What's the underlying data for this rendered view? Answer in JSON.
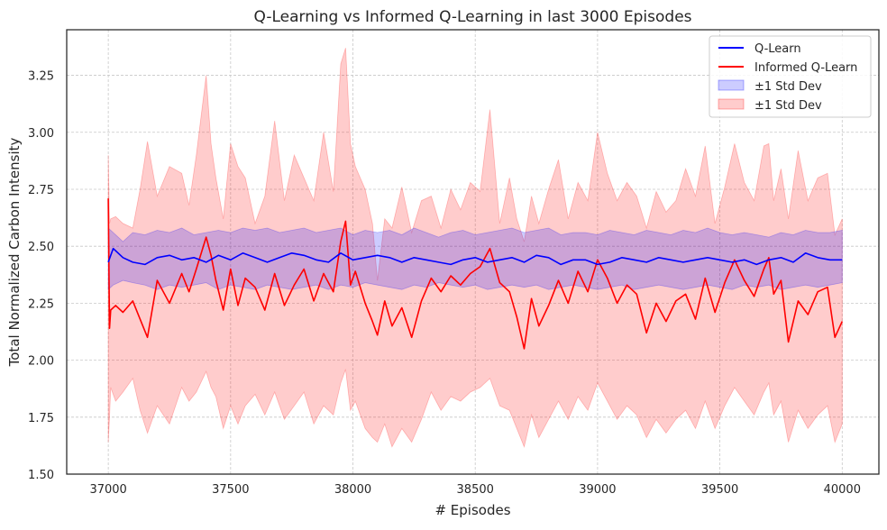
{
  "chart_data": {
    "type": "line",
    "title": "Q-Learning vs Informed Q-Learning in last 3000 Episodes",
    "xlabel": "# Episodes",
    "ylabel": "Total Normalized Carbon Intensity",
    "xlim": [
      36830,
      40150
    ],
    "ylim": [
      1.5,
      3.45
    ],
    "xticks": [
      37000,
      37500,
      38000,
      38500,
      39000,
      39500,
      40000
    ],
    "yticks": [
      1.5,
      1.75,
      2.0,
      2.25,
      2.5,
      2.75,
      3.0,
      3.25
    ],
    "ytick_labels": [
      "1.50",
      "1.75",
      "2.00",
      "2.25",
      "2.50",
      "2.75",
      "3.00",
      "3.25"
    ],
    "grid": true,
    "legend_position": "top-right",
    "series": [
      {
        "name": "Q-Learn",
        "color": "#0000ff",
        "x": [
          37000,
          37020,
          37060,
          37100,
          37150,
          37200,
          37250,
          37300,
          37350,
          37400,
          37450,
          37500,
          37550,
          37600,
          37650,
          37700,
          37750,
          37800,
          37850,
          37900,
          37950,
          38000,
          38050,
          38100,
          38150,
          38200,
          38250,
          38300,
          38350,
          38400,
          38450,
          38500,
          38550,
          38600,
          38650,
          38700,
          38750,
          38800,
          38850,
          38900,
          38950,
          39000,
          39050,
          39100,
          39150,
          39200,
          39250,
          39300,
          39350,
          39400,
          39450,
          39500,
          39550,
          39600,
          39650,
          39700,
          39750,
          39800,
          39850,
          39900,
          39950,
          40000
        ],
        "y": [
          2.43,
          2.49,
          2.45,
          2.43,
          2.42,
          2.45,
          2.46,
          2.44,
          2.45,
          2.43,
          2.46,
          2.44,
          2.47,
          2.45,
          2.43,
          2.45,
          2.47,
          2.46,
          2.44,
          2.43,
          2.47,
          2.44,
          2.45,
          2.46,
          2.45,
          2.43,
          2.45,
          2.44,
          2.43,
          2.42,
          2.44,
          2.45,
          2.43,
          2.44,
          2.45,
          2.43,
          2.46,
          2.45,
          2.42,
          2.44,
          2.44,
          2.42,
          2.43,
          2.45,
          2.44,
          2.43,
          2.45,
          2.44,
          2.43,
          2.44,
          2.45,
          2.44,
          2.43,
          2.44,
          2.42,
          2.44,
          2.45,
          2.43,
          2.47,
          2.45,
          2.44,
          2.44
        ],
        "band": {
          "name": "±1 Std Dev",
          "color": "#0000ff",
          "opacity": 0.2,
          "upper": [
            2.58,
            2.56,
            2.52,
            2.56,
            2.55,
            2.57,
            2.56,
            2.58,
            2.55,
            2.56,
            2.57,
            2.56,
            2.58,
            2.57,
            2.58,
            2.56,
            2.57,
            2.58,
            2.56,
            2.57,
            2.58,
            2.55,
            2.57,
            2.56,
            2.57,
            2.55,
            2.58,
            2.56,
            2.54,
            2.56,
            2.57,
            2.55,
            2.56,
            2.57,
            2.58,
            2.56,
            2.57,
            2.58,
            2.55,
            2.56,
            2.56,
            2.55,
            2.57,
            2.56,
            2.55,
            2.57,
            2.56,
            2.55,
            2.57,
            2.56,
            2.58,
            2.56,
            2.55,
            2.56,
            2.55,
            2.54,
            2.56,
            2.55,
            2.57,
            2.56,
            2.56,
            2.57
          ],
          "lower": [
            2.31,
            2.33,
            2.35,
            2.34,
            2.33,
            2.31,
            2.33,
            2.32,
            2.33,
            2.34,
            2.31,
            2.33,
            2.32,
            2.31,
            2.33,
            2.32,
            2.31,
            2.32,
            2.33,
            2.31,
            2.33,
            2.32,
            2.34,
            2.33,
            2.32,
            2.31,
            2.33,
            2.32,
            2.34,
            2.33,
            2.32,
            2.33,
            2.31,
            2.32,
            2.33,
            2.32,
            2.33,
            2.31,
            2.32,
            2.33,
            2.32,
            2.31,
            2.32,
            2.33,
            2.31,
            2.32,
            2.33,
            2.32,
            2.31,
            2.32,
            2.33,
            2.32,
            2.31,
            2.33,
            2.32,
            2.33,
            2.31,
            2.32,
            2.33,
            2.32,
            2.33,
            2.34
          ]
        }
      },
      {
        "name": "Informed Q-Learn",
        "color": "#ff0000",
        "x": [
          37000,
          37005,
          37010,
          37030,
          37060,
          37100,
          37130,
          37160,
          37200,
          37250,
          37300,
          37330,
          37360,
          37400,
          37420,
          37440,
          37470,
          37500,
          37530,
          37560,
          37600,
          37640,
          37680,
          37720,
          37760,
          37800,
          37840,
          37880,
          37920,
          37950,
          37970,
          37990,
          38010,
          38050,
          38080,
          38100,
          38130,
          38160,
          38200,
          38240,
          38280,
          38320,
          38360,
          38400,
          38440,
          38480,
          38520,
          38560,
          38600,
          38640,
          38670,
          38700,
          38730,
          38760,
          38800,
          38840,
          38880,
          38920,
          38960,
          39000,
          39040,
          39080,
          39120,
          39160,
          39200,
          39240,
          39280,
          39320,
          39360,
          39400,
          39440,
          39480,
          39520,
          39560,
          39600,
          39640,
          39680,
          39700,
          39720,
          39750,
          39780,
          39820,
          39860,
          39900,
          39940,
          39970,
          40000
        ],
        "y": [
          2.71,
          2.14,
          2.22,
          2.24,
          2.21,
          2.26,
          2.18,
          2.1,
          2.35,
          2.25,
          2.38,
          2.3,
          2.4,
          2.54,
          2.46,
          2.35,
          2.22,
          2.4,
          2.24,
          2.36,
          2.32,
          2.22,
          2.38,
          2.24,
          2.33,
          2.4,
          2.26,
          2.38,
          2.3,
          2.52,
          2.61,
          2.33,
          2.39,
          2.25,
          2.17,
          2.11,
          2.26,
          2.15,
          2.23,
          2.1,
          2.26,
          2.36,
          2.3,
          2.37,
          2.33,
          2.38,
          2.41,
          2.49,
          2.34,
          2.3,
          2.19,
          2.05,
          2.27,
          2.15,
          2.24,
          2.35,
          2.25,
          2.39,
          2.3,
          2.44,
          2.36,
          2.25,
          2.33,
          2.29,
          2.12,
          2.25,
          2.17,
          2.26,
          2.29,
          2.18,
          2.36,
          2.21,
          2.34,
          2.44,
          2.35,
          2.28,
          2.4,
          2.45,
          2.29,
          2.35,
          2.08,
          2.26,
          2.2,
          2.3,
          2.32,
          2.1,
          2.17
        ],
        "band": {
          "name": "±1 Std Dev",
          "color": "#ff0000",
          "opacity": 0.2,
          "upper": [
            2.9,
            2.6,
            2.62,
            2.63,
            2.6,
            2.58,
            2.75,
            2.96,
            2.72,
            2.85,
            2.82,
            2.68,
            2.9,
            3.25,
            2.95,
            2.8,
            2.62,
            2.95,
            2.85,
            2.8,
            2.6,
            2.72,
            3.05,
            2.7,
            2.9,
            2.8,
            2.7,
            3.0,
            2.74,
            3.3,
            3.37,
            2.95,
            2.85,
            2.75,
            2.6,
            2.35,
            2.62,
            2.58,
            2.76,
            2.56,
            2.7,
            2.72,
            2.58,
            2.75,
            2.66,
            2.78,
            2.74,
            3.1,
            2.6,
            2.8,
            2.62,
            2.52,
            2.72,
            2.6,
            2.75,
            2.88,
            2.62,
            2.78,
            2.7,
            3.0,
            2.82,
            2.7,
            2.78,
            2.72,
            2.58,
            2.74,
            2.65,
            2.7,
            2.84,
            2.72,
            2.94,
            2.6,
            2.76,
            2.95,
            2.78,
            2.7,
            2.94,
            2.95,
            2.7,
            2.84,
            2.62,
            2.92,
            2.7,
            2.8,
            2.82,
            2.55,
            2.62
          ],
          "lower": [
            1.64,
            1.75,
            1.88,
            1.82,
            1.86,
            1.92,
            1.78,
            1.68,
            1.8,
            1.72,
            1.88,
            1.82,
            1.86,
            1.95,
            1.88,
            1.84,
            1.7,
            1.8,
            1.72,
            1.8,
            1.85,
            1.76,
            1.86,
            1.74,
            1.8,
            1.86,
            1.72,
            1.8,
            1.76,
            1.9,
            1.96,
            1.78,
            1.82,
            1.7,
            1.66,
            1.64,
            1.72,
            1.62,
            1.7,
            1.64,
            1.74,
            1.86,
            1.78,
            1.84,
            1.82,
            1.86,
            1.88,
            1.92,
            1.8,
            1.78,
            1.7,
            1.62,
            1.76,
            1.66,
            1.74,
            1.82,
            1.74,
            1.84,
            1.78,
            1.9,
            1.82,
            1.74,
            1.8,
            1.76,
            1.66,
            1.74,
            1.68,
            1.74,
            1.78,
            1.7,
            1.82,
            1.7,
            1.8,
            1.88,
            1.82,
            1.76,
            1.86,
            1.9,
            1.76,
            1.82,
            1.64,
            1.78,
            1.7,
            1.76,
            1.8,
            1.64,
            1.72
          ]
        }
      }
    ]
  }
}
